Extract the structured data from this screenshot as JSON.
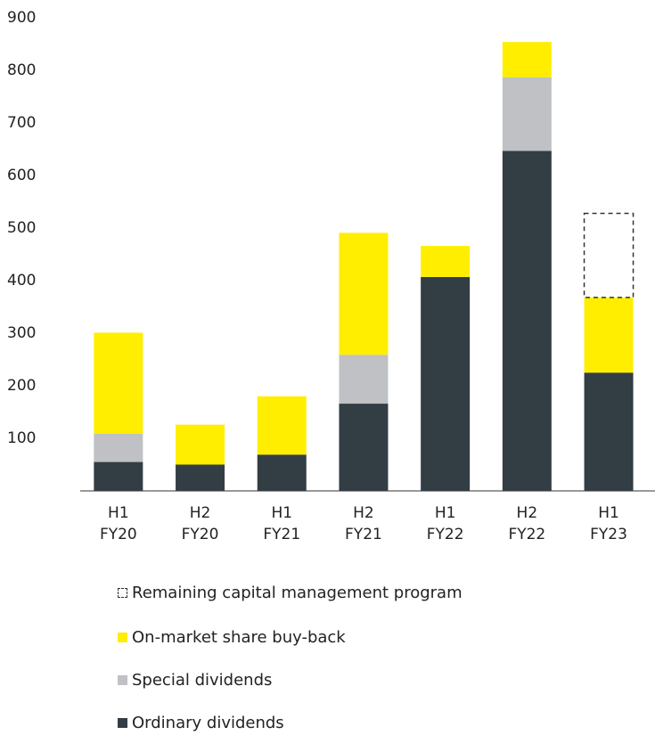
{
  "chart_data": {
    "type": "bar",
    "stacked": true,
    "categories": [
      "H1 FY20",
      "H2 FY20",
      "H1 FY21",
      "H2 FY21",
      "H1 FY22",
      "H2 FY22",
      "H1 FY23"
    ],
    "series": [
      {
        "name": "Ordinary dividends",
        "color": "#333d44",
        "values": [
          55,
          50,
          69,
          166,
          407,
          647,
          225
        ]
      },
      {
        "name": "Special dividends",
        "color": "#bfc1c4",
        "values": [
          54,
          null,
          null,
          93,
          null,
          140,
          null
        ]
      },
      {
        "name": "On-market share buy-back",
        "color": "#ffee00",
        "values": [
          192,
          76,
          111,
          232,
          59,
          67,
          143
        ]
      },
      {
        "name": "Remaining capital management program",
        "color": "#333333",
        "dashed": true,
        "values": [
          null,
          null,
          null,
          null,
          null,
          null,
          160
        ]
      }
    ],
    "ylim": [
      0,
      900
    ],
    "yticks": [
      100,
      200,
      300,
      400,
      500,
      600,
      700,
      800,
      900
    ],
    "grid": false
  }
}
